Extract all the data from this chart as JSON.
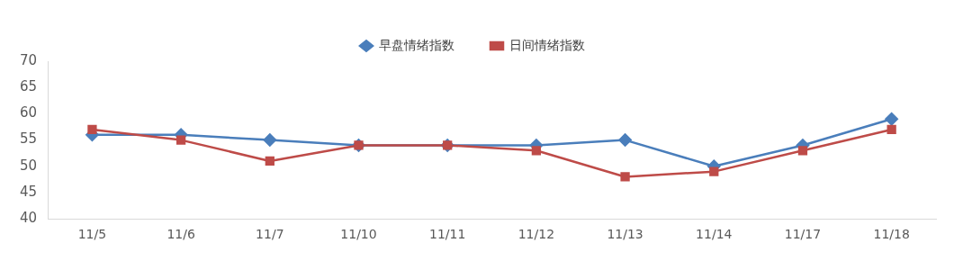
{
  "chart_data": {
    "type": "line",
    "categories": [
      "11/5",
      "11/6",
      "11/7",
      "11/10",
      "11/11",
      "11/12",
      "11/13",
      "11/14",
      "11/17",
      "11/18"
    ],
    "series": [
      {
        "name": "早盘情绪指数",
        "color": "#4a7ebb",
        "marker": "diamond",
        "values": [
          56,
          56,
          55,
          54,
          54,
          54,
          55,
          50,
          54,
          59
        ]
      },
      {
        "name": "日间情绪指数",
        "color": "#be4b48",
        "marker": "square",
        "values": [
          57,
          55,
          51,
          54,
          54,
          53,
          48,
          49,
          53,
          57
        ]
      }
    ],
    "ylim": [
      40,
      70
    ],
    "yticks": [
      40,
      45,
      50,
      55,
      60,
      65,
      70
    ],
    "grid": false,
    "legend": "top"
  }
}
